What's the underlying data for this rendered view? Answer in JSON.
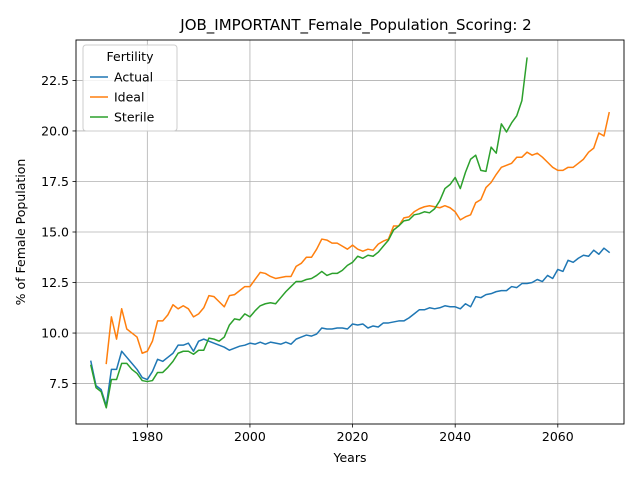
{
  "chart_data": {
    "type": "line",
    "title": "JOB_IMPORTANT_Female_Population_Scoring: 2",
    "xlabel": "Years",
    "ylabel": "% of Female Population",
    "xlim": [
      1966.1,
      2072.9
    ],
    "ylim": [
      5.5,
      24.5
    ],
    "xticks": [
      1980,
      2000,
      2020,
      2040,
      2060
    ],
    "yticks": [
      7.5,
      10.0,
      12.5,
      15.0,
      17.5,
      20.0,
      22.5
    ],
    "xtick_labels": [
      "1980",
      "2000",
      "2020",
      "2040",
      "2060"
    ],
    "ytick_labels": [
      "7.5",
      "10.0",
      "12.5",
      "15.0",
      "17.5",
      "20.0",
      "22.5"
    ],
    "grid": true,
    "legend": {
      "title": "Fertility",
      "location": "upper-left",
      "entries": [
        "Actual",
        "Ideal",
        "Sterile"
      ]
    },
    "series": [
      {
        "name": "Actual",
        "color": "#1f77b4",
        "x": [
          1969,
          1970,
          1971,
          1972,
          1973,
          1974,
          1975,
          1976,
          1977,
          1978,
          1979,
          1980,
          1981,
          1982,
          1983,
          1984,
          1985,
          1986,
          1987,
          1988,
          1989,
          1990,
          1991,
          1992,
          1993,
          1994,
          1995,
          1996,
          1997,
          1998,
          1999,
          2000,
          2001,
          2002,
          2003,
          2004,
          2005,
          2006,
          2007,
          2008,
          2009,
          2010,
          2011,
          2012,
          2013,
          2014,
          2015,
          2016,
          2017,
          2018,
          2019,
          2020,
          2021,
          2022,
          2023,
          2024,
          2025,
          2026,
          2027,
          2028,
          2029,
          2030,
          2031,
          2032,
          2033,
          2034,
          2035,
          2036,
          2037,
          2038,
          2039,
          2040,
          2041,
          2042,
          2043,
          2044,
          2045,
          2046,
          2047,
          2048,
          2049,
          2050,
          2051,
          2052,
          2053,
          2054,
          2055,
          2056,
          2057,
          2058,
          2059,
          2060,
          2061,
          2062,
          2063,
          2064,
          2065,
          2066,
          2067,
          2068,
          2069,
          2070
        ],
        "values": [
          8.6,
          7.4,
          7.2,
          6.4,
          8.2,
          8.2,
          9.1,
          8.8,
          8.5,
          8.2,
          7.8,
          7.7,
          8.1,
          8.7,
          8.6,
          8.8,
          9.0,
          9.4,
          9.4,
          9.5,
          9.1,
          9.6,
          9.7,
          9.6,
          9.5,
          9.4,
          9.3,
          9.15,
          9.25,
          9.35,
          9.4,
          9.5,
          9.45,
          9.55,
          9.45,
          9.55,
          9.5,
          9.45,
          9.55,
          9.45,
          9.7,
          9.8,
          9.9,
          9.85,
          9.95,
          10.25,
          10.2,
          10.2,
          10.25,
          10.25,
          10.2,
          10.45,
          10.4,
          10.45,
          10.25,
          10.35,
          10.3,
          10.5,
          10.5,
          10.55,
          10.6,
          10.6,
          10.75,
          10.95,
          11.15,
          11.15,
          11.25,
          11.2,
          11.25,
          11.35,
          11.3,
          11.3,
          11.2,
          11.45,
          11.3,
          11.8,
          11.75,
          11.9,
          11.95,
          12.05,
          12.1,
          12.1,
          12.3,
          12.25,
          12.45,
          12.45,
          12.5,
          12.65,
          12.55,
          12.85,
          12.7,
          13.15,
          13.05,
          13.6,
          13.5,
          13.7,
          13.85,
          13.8,
          14.1,
          13.9,
          14.2,
          14.0
        ]
      },
      {
        "name": "Ideal",
        "color": "#ff7f0e",
        "x": [
          1972,
          1973,
          1974,
          1975,
          1976,
          1977,
          1978,
          1979,
          1980,
          1981,
          1982,
          1983,
          1984,
          1985,
          1986,
          1987,
          1988,
          1989,
          1990,
          1991,
          1992,
          1993,
          1994,
          1995,
          1996,
          1997,
          1998,
          1999,
          2000,
          2001,
          2002,
          2003,
          2004,
          2005,
          2006,
          2007,
          2008,
          2009,
          2010,
          2011,
          2012,
          2013,
          2014,
          2015,
          2016,
          2017,
          2018,
          2019,
          2020,
          2021,
          2022,
          2023,
          2024,
          2025,
          2026,
          2027,
          2028,
          2029,
          2030,
          2031,
          2032,
          2033,
          2034,
          2035,
          2036,
          2037,
          2038,
          2039,
          2040,
          2041,
          2042,
          2043,
          2044,
          2045,
          2046,
          2047,
          2048,
          2049,
          2050,
          2051,
          2052,
          2053,
          2054,
          2055,
          2056,
          2057,
          2058,
          2059,
          2060,
          2061,
          2062,
          2063,
          2064,
          2065,
          2066,
          2067,
          2068,
          2069,
          2070
        ],
        "values": [
          8.5,
          10.8,
          9.7,
          11.2,
          10.2,
          10.0,
          9.8,
          9.0,
          9.1,
          9.6,
          10.6,
          10.6,
          10.9,
          11.4,
          11.2,
          11.35,
          11.2,
          10.8,
          10.95,
          11.25,
          11.85,
          11.8,
          11.55,
          11.3,
          11.85,
          11.9,
          12.1,
          12.3,
          12.3,
          12.65,
          13.0,
          12.95,
          12.8,
          12.7,
          12.75,
          12.8,
          12.8,
          13.3,
          13.45,
          13.75,
          13.75,
          14.15,
          14.65,
          14.6,
          14.45,
          14.45,
          14.3,
          14.15,
          14.35,
          14.15,
          14.05,
          14.15,
          14.1,
          14.4,
          14.55,
          14.65,
          15.3,
          15.3,
          15.7,
          15.75,
          16.0,
          16.15,
          16.25,
          16.3,
          16.25,
          16.2,
          16.3,
          16.2,
          16.0,
          15.6,
          15.75,
          15.85,
          16.45,
          16.6,
          17.2,
          17.45,
          17.85,
          18.2,
          18.3,
          18.4,
          18.7,
          18.7,
          18.95,
          18.8,
          18.9,
          18.7,
          18.45,
          18.2,
          18.05,
          18.05,
          18.2,
          18.2,
          18.4,
          18.6,
          18.95,
          19.15,
          19.9,
          19.75,
          20.9
        ]
      },
      {
        "name": "Sterile",
        "color": "#2ca02c",
        "x": [
          1969,
          1970,
          1971,
          1972,
          1973,
          1974,
          1975,
          1976,
          1977,
          1978,
          1979,
          1980,
          1981,
          1982,
          1983,
          1984,
          1985,
          1986,
          1987,
          1988,
          1989,
          1990,
          1991,
          1992,
          1993,
          1994,
          1995,
          1996,
          1997,
          1998,
          1999,
          2000,
          2001,
          2002,
          2003,
          2004,
          2005,
          2006,
          2007,
          2008,
          2009,
          2010,
          2011,
          2012,
          2013,
          2014,
          2015,
          2016,
          2017,
          2018,
          2019,
          2020,
          2021,
          2022,
          2023,
          2024,
          2025,
          2026,
          2027,
          2028,
          2029,
          2030,
          2031,
          2032,
          2033,
          2034,
          2035,
          2036,
          2037,
          2038,
          2039,
          2040,
          2041,
          2042,
          2043,
          2044,
          2045,
          2046,
          2047,
          2048,
          2049,
          2050,
          2051,
          2052,
          2053,
          2054
        ],
        "values": [
          8.4,
          7.3,
          7.1,
          6.3,
          7.7,
          7.7,
          8.5,
          8.5,
          8.2,
          8.0,
          7.65,
          7.6,
          7.65,
          8.05,
          8.05,
          8.3,
          8.6,
          9.0,
          9.1,
          9.1,
          8.95,
          9.15,
          9.15,
          9.75,
          9.7,
          9.6,
          9.8,
          10.4,
          10.7,
          10.65,
          10.95,
          10.8,
          11.1,
          11.35,
          11.45,
          11.5,
          11.45,
          11.75,
          12.05,
          12.3,
          12.55,
          12.55,
          12.65,
          12.7,
          12.85,
          13.05,
          12.85,
          12.95,
          12.95,
          13.1,
          13.35,
          13.5,
          13.8,
          13.7,
          13.85,
          13.8,
          14.0,
          14.3,
          14.6,
          15.1,
          15.3,
          15.55,
          15.6,
          15.85,
          15.9,
          16.0,
          15.95,
          16.15,
          16.55,
          17.15,
          17.35,
          17.7,
          17.15,
          17.95,
          18.6,
          18.8,
          18.05,
          18.0,
          19.2,
          18.9,
          20.35,
          19.95,
          20.4,
          20.75,
          21.5,
          23.6
        ]
      }
    ]
  }
}
